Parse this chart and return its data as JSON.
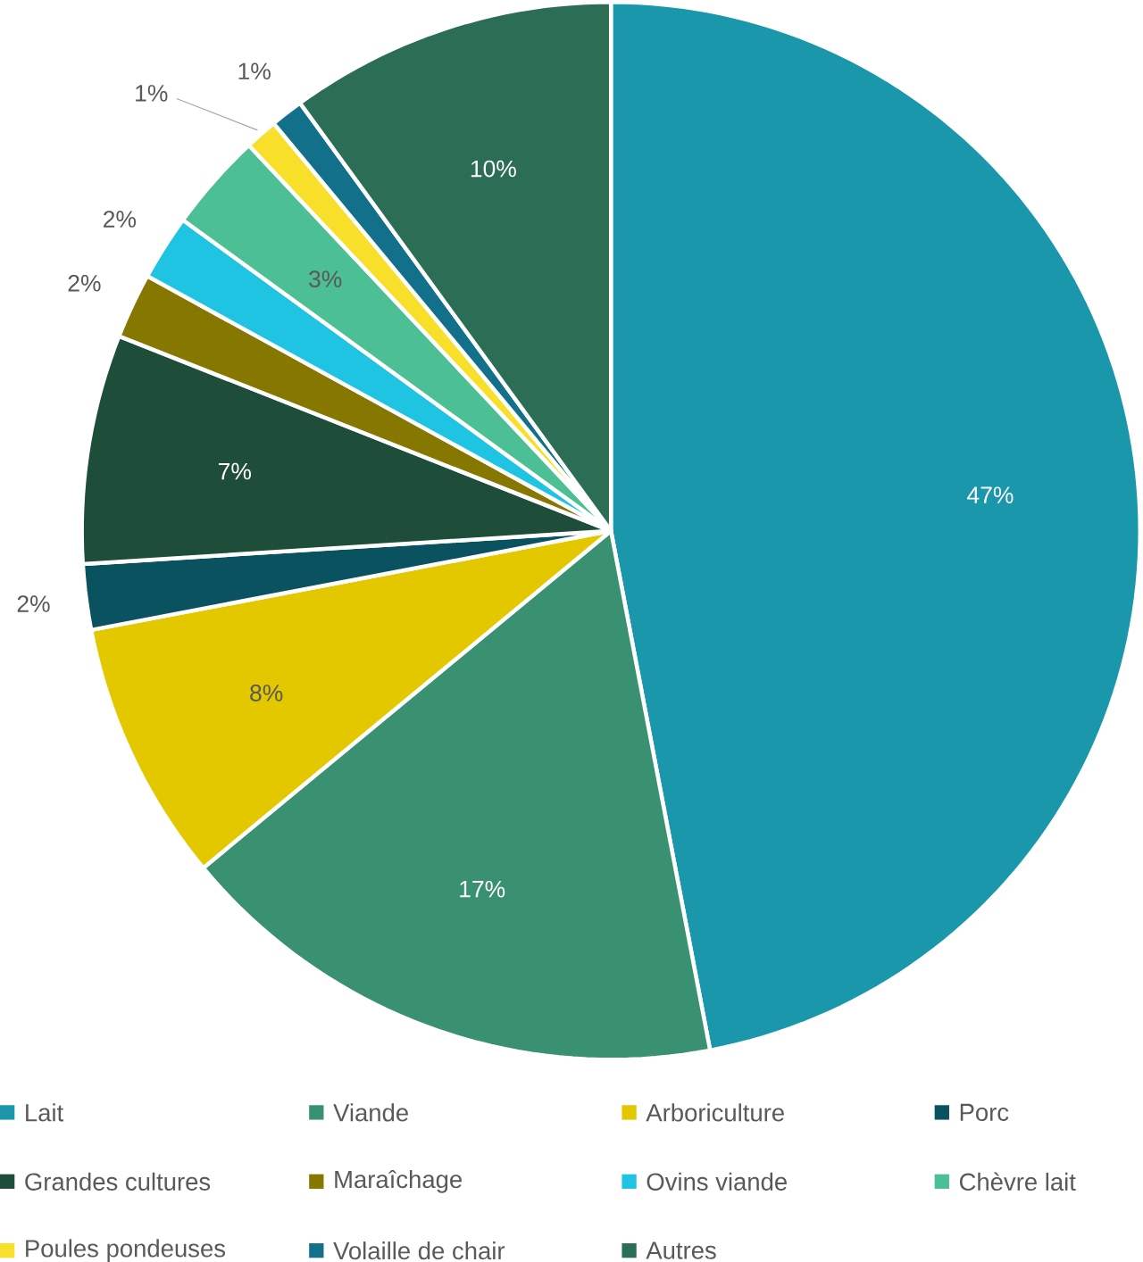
{
  "chart_data": {
    "type": "pie",
    "categories": [
      "Lait",
      "Viande",
      "Arboriculture",
      "Porc",
      "Grandes cultures",
      "Maraîchage",
      "Ovins viande",
      "Chèvre lait",
      "Poules pondeuses",
      "Volaille de chair",
      "Autres"
    ],
    "values": [
      47,
      17,
      8,
      2,
      7,
      2,
      2,
      3,
      1,
      1,
      10
    ],
    "colors": [
      "#1a97ab",
      "#3a9171",
      "#e3c800",
      "#0b5261",
      "#1e4d3a",
      "#857700",
      "#20c4e3",
      "#4dbf94",
      "#f7df2a",
      "#12708a",
      "#2b6e55"
    ],
    "value_labels": [
      "47%",
      "17%",
      "8%",
      "2%",
      "7%",
      "2%",
      "2%",
      "3%",
      "1%",
      "1%",
      "10%"
    ],
    "legend": "bottom"
  }
}
